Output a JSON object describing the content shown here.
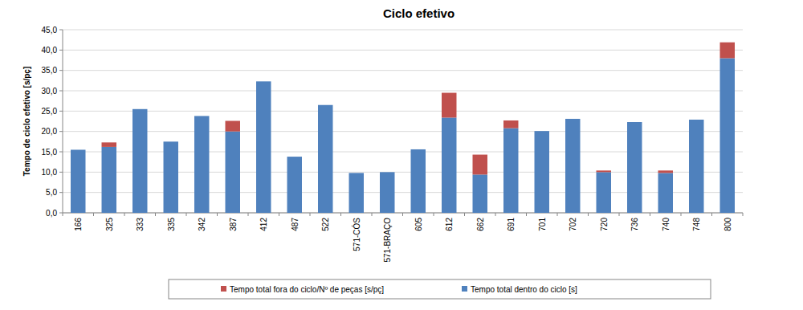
{
  "chart_data": {
    "type": "bar",
    "title": "Ciclo efetivo",
    "y_label": "Tempo de ciclo efetivo [s/pç]",
    "categories": [
      "166",
      "325",
      "333",
      "335",
      "342",
      "387",
      "412",
      "487",
      "522",
      "571-CÓS",
      "571-BRAÇO",
      "605",
      "612",
      "662",
      "691",
      "701",
      "702",
      "720",
      "736",
      "740",
      "748",
      "800"
    ],
    "series": [
      {
        "name": "Tempo total fora do ciclo/Nº de peças [s/pç]",
        "color": "#c0504d",
        "values": [
          0,
          1.1,
          0,
          0,
          0,
          2.6,
          0,
          0,
          0,
          0,
          0,
          0,
          6.1,
          4.9,
          1.9,
          0,
          0,
          0.4,
          0,
          0.6,
          0,
          3.9
        ]
      },
      {
        "name": "Tempo total dentro do ciclo [s]",
        "color": "#4f81bd",
        "values": [
          15.5,
          16.2,
          25.5,
          17.5,
          23.8,
          20.0,
          32.3,
          13.8,
          26.5,
          9.8,
          10.0,
          15.6,
          23.4,
          9.4,
          20.8,
          20.1,
          23.1,
          10.0,
          22.3,
          9.8,
          22.9,
          38.0
        ]
      }
    ],
    "stacked": true,
    "ylim": [
      0,
      45
    ],
    "yticks": [
      {
        "value": 0,
        "label": "0,0"
      },
      {
        "value": 5,
        "label": "5,0"
      },
      {
        "value": 10,
        "label": "10,0"
      },
      {
        "value": 15,
        "label": "15,0"
      },
      {
        "value": 20,
        "label": "20,0"
      },
      {
        "value": 25,
        "label": "25,0"
      },
      {
        "value": 30,
        "label": "30,0"
      },
      {
        "value": 35,
        "label": "35,0"
      },
      {
        "value": 40,
        "label": "40,0"
      },
      {
        "value": 45,
        "label": "45,0"
      }
    ],
    "grid": true,
    "legend": "bottom"
  }
}
